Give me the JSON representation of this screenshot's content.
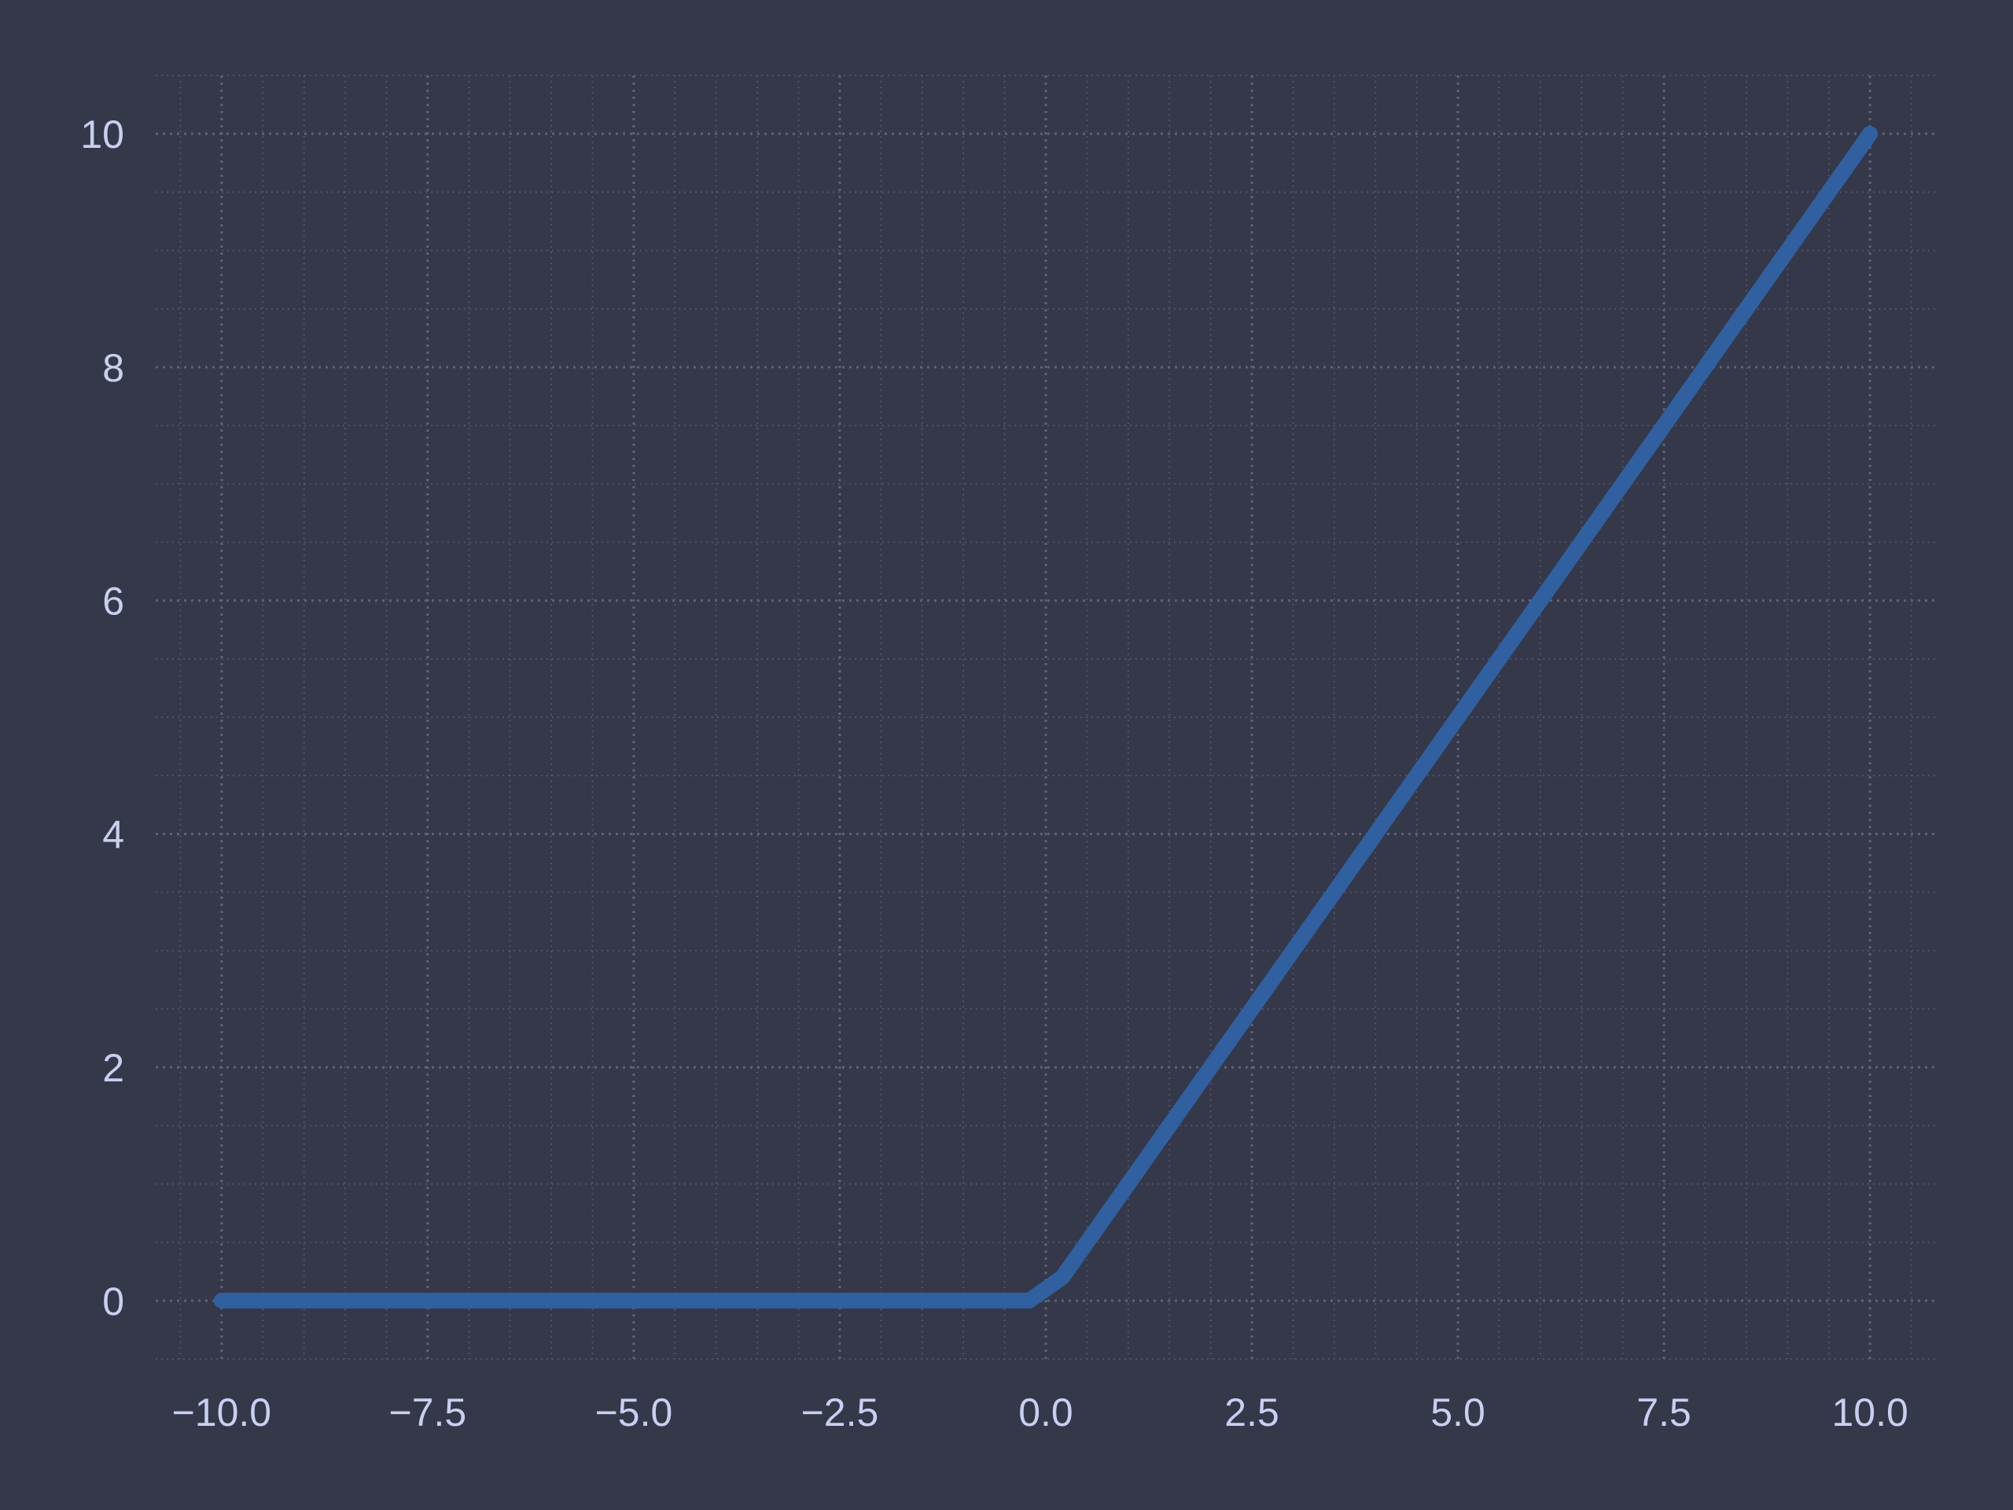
{
  "chart_data": {
    "type": "line",
    "title": "",
    "xlabel": "",
    "ylabel": "",
    "xlim": [
      -10.8,
      10.8
    ],
    "ylim": [
      -0.5,
      10.5
    ],
    "grid": true,
    "grid_minor": true,
    "x_ticks": [
      -10.0,
      -7.5,
      -5.0,
      -2.5,
      0.0,
      2.5,
      5.0,
      7.5,
      10.0
    ],
    "x_tick_labels": [
      "−10.0",
      "−7.5",
      "−5.0",
      "−2.5",
      "0.0",
      "2.5",
      "5.0",
      "7.5",
      "10.0"
    ],
    "y_ticks": [
      0,
      2,
      4,
      6,
      8,
      10
    ],
    "y_tick_labels": [
      "0",
      "2",
      "4",
      "6",
      "8",
      "10"
    ],
    "series": [
      {
        "color": "#3060a0",
        "x": [
          -10.0,
          -0.2,
          0.2,
          10.0
        ],
        "y": [
          0.0,
          0.0,
          0.2,
          10.0
        ]
      }
    ],
    "background_color": "#343849",
    "tick_label_color": "#c9cff0"
  }
}
